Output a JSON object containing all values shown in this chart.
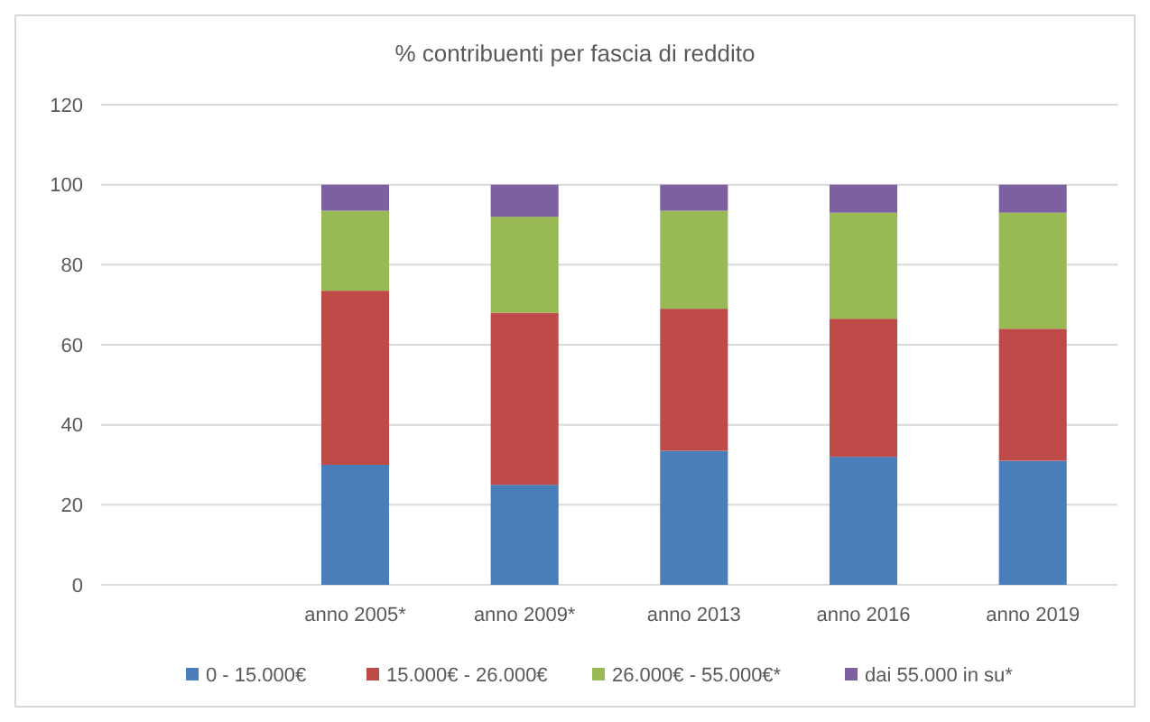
{
  "chart_data": {
    "type": "bar",
    "title": "% contribuenti per fascia di reddito",
    "categories": [
      null,
      "anno 2005*",
      "anno 2009*",
      "anno 2013",
      "anno 2016",
      "anno 2019"
    ],
    "stacked": true,
    "ylim": [
      0,
      120
    ],
    "yticks": [
      0,
      20,
      40,
      60,
      80,
      100,
      120
    ],
    "grid": "y",
    "legend": "bottom",
    "series": [
      {
        "name": "0 - 15.000€",
        "color": "#4a7ebb",
        "values": [
          null,
          30,
          25,
          33.5,
          32,
          31
        ]
      },
      {
        "name": "15.000€ - 26.000€",
        "color": "#be4b48",
        "values": [
          null,
          43.5,
          43,
          35.5,
          34.5,
          33
        ]
      },
      {
        "name": "26.000€ - 55.000€*",
        "color": "#98b954",
        "values": [
          null,
          20,
          24,
          24.5,
          26.5,
          29
        ]
      },
      {
        "name": "dai 55.000 in su*",
        "color": "#7d60a0",
        "values": [
          null,
          6.5,
          8,
          6.5,
          7,
          7
        ]
      }
    ]
  }
}
